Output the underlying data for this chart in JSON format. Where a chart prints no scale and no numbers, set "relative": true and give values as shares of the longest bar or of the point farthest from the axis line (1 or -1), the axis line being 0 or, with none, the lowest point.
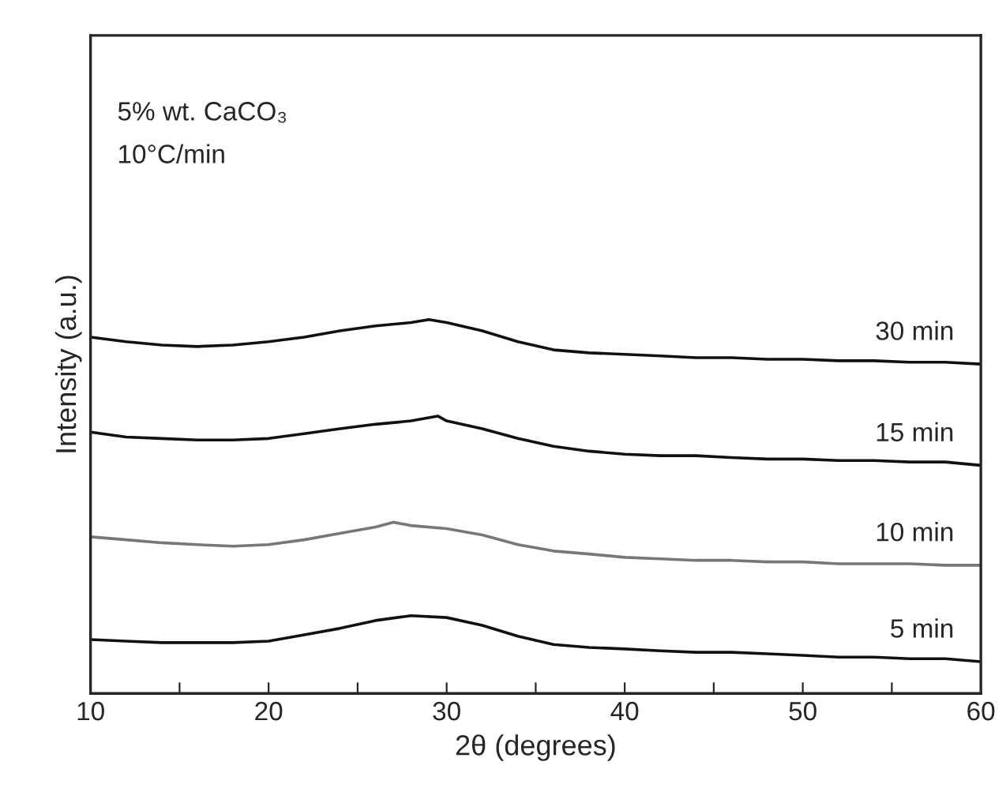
{
  "chart_data": {
    "type": "line",
    "relative": true,
    "xlabel": "2θ (degrees)",
    "ylabel": "Intensity (a.u.)",
    "annotations": [
      "5% wt. CaCO₃",
      "10°C/min"
    ],
    "xlim": [
      10,
      60
    ],
    "xticks": [
      10,
      {
        "value": 15,
        "label": null
      },
      20,
      {
        "value": 25,
        "label": null
      },
      30,
      {
        "value": 35,
        "label": null
      },
      40,
      {
        "value": 45,
        "label": null
      },
      50,
      {
        "value": 55,
        "label": null
      },
      60
    ],
    "tick_labels": "x",
    "grid": false,
    "legend": false,
    "marker": "none",
    "line_style": "solid",
    "series": [
      {
        "name": "30 min",
        "color": "#111111",
        "x": [
          10,
          12,
          14,
          16,
          18,
          20,
          22,
          24,
          26,
          28,
          29,
          30,
          32,
          34,
          36,
          38,
          40,
          42,
          44,
          46,
          48,
          50,
          52,
          54,
          56,
          58,
          60
        ],
        "values": [
          0.953,
          0.941,
          0.932,
          0.928,
          0.932,
          0.941,
          0.953,
          0.97,
          0.983,
          0.992,
          1.0,
          0.992,
          0.97,
          0.941,
          0.919,
          0.911,
          0.907,
          0.903,
          0.898,
          0.898,
          0.894,
          0.894,
          0.89,
          0.89,
          0.886,
          0.886,
          0.881
        ]
      },
      {
        "name": "15 min",
        "color": "#111111",
        "x": [
          10,
          12,
          14,
          16,
          18,
          20,
          22,
          24,
          26,
          28,
          29.5,
          30,
          32,
          34,
          36,
          38,
          40,
          42,
          44,
          46,
          48,
          50,
          52,
          54,
          56,
          58,
          60
        ],
        "values": [
          0.699,
          0.686,
          0.682,
          0.678,
          0.678,
          0.682,
          0.695,
          0.708,
          0.72,
          0.729,
          0.742,
          0.729,
          0.708,
          0.682,
          0.661,
          0.648,
          0.64,
          0.636,
          0.636,
          0.631,
          0.627,
          0.627,
          0.623,
          0.623,
          0.619,
          0.619,
          0.61
        ]
      },
      {
        "name": "10 min",
        "color": "#777777",
        "x": [
          10,
          12,
          14,
          16,
          18,
          20,
          22,
          24,
          26,
          27,
          28,
          30,
          32,
          34,
          36,
          38,
          40,
          42,
          44,
          46,
          48,
          50,
          52,
          54,
          56,
          58,
          60
        ],
        "values": [
          0.419,
          0.411,
          0.403,
          0.398,
          0.394,
          0.398,
          0.411,
          0.428,
          0.445,
          0.458,
          0.449,
          0.441,
          0.424,
          0.398,
          0.381,
          0.373,
          0.364,
          0.36,
          0.356,
          0.356,
          0.352,
          0.352,
          0.347,
          0.347,
          0.347,
          0.343,
          0.343
        ]
      },
      {
        "name": "5 min",
        "color": "#111111",
        "x": [
          10,
          12,
          14,
          16,
          18,
          20,
          22,
          24,
          26,
          28,
          30,
          32,
          34,
          36,
          38,
          40,
          42,
          44,
          46,
          48,
          50,
          52,
          54,
          56,
          58,
          60
        ],
        "values": [
          0.144,
          0.14,
          0.136,
          0.136,
          0.136,
          0.14,
          0.157,
          0.174,
          0.195,
          0.208,
          0.203,
          0.182,
          0.153,
          0.131,
          0.123,
          0.119,
          0.114,
          0.11,
          0.11,
          0.106,
          0.102,
          0.097,
          0.097,
          0.093,
          0.093,
          0.085
        ]
      }
    ]
  }
}
